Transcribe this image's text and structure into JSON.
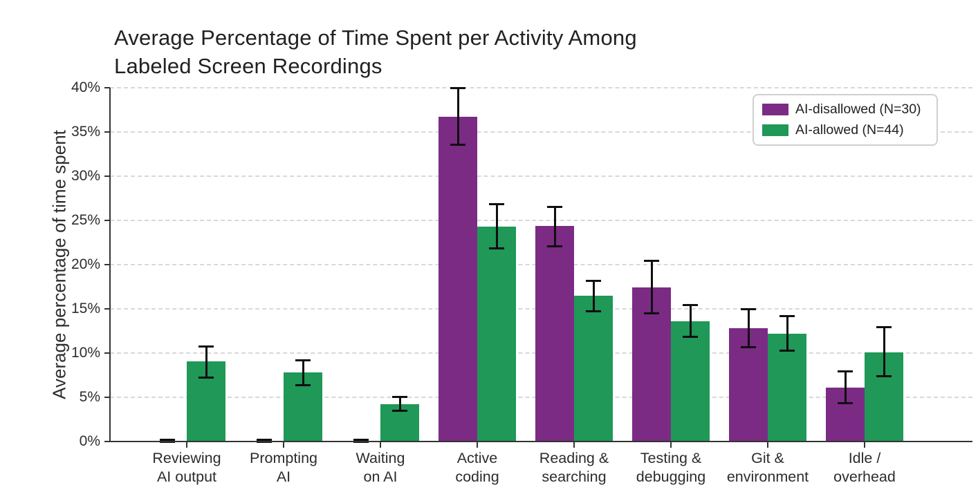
{
  "title": {
    "line1": "Average Percentage of Time Spent per Activity Among",
    "line2": "Labeled Screen Recordings"
  },
  "chart_data": {
    "type": "bar",
    "title": "Average Percentage of Time Spent per Activity Among Labeled Screen Recordings",
    "xlabel": "",
    "ylabel": "Average percentage of time spent",
    "ylim": [
      0,
      40
    ],
    "ytick_step": 5,
    "ytick_labels": [
      "0%",
      "5%",
      "10%",
      "15%",
      "20%",
      "25%",
      "30%",
      "35%",
      "40%"
    ],
    "grid": "horizontal dashed gridlines on",
    "legend_position": "upper right",
    "categories": [
      [
        "Reviewing",
        "AI output"
      ],
      [
        "Prompting",
        "AI"
      ],
      [
        "Waiting",
        "on AI"
      ],
      [
        "Active",
        "coding"
      ],
      [
        "Reading &",
        "searching"
      ],
      [
        "Testing &",
        "debugging"
      ],
      [
        "Git &",
        "environment"
      ],
      [
        "Idle /",
        "overhead"
      ]
    ],
    "series": [
      {
        "name": "AI-disallowed (N=30)",
        "color": "#7b2b84",
        "values": [
          0.1,
          0.1,
          0.1,
          36.7,
          24.4,
          17.4,
          12.8,
          6.1
        ],
        "err_low": [
          0.0,
          0.0,
          0.0,
          33.6,
          22.1,
          14.5,
          10.7,
          4.4
        ],
        "err_high": [
          0.2,
          0.2,
          0.2,
          40.0,
          26.6,
          20.5,
          15.0,
          8.0
        ]
      },
      {
        "name": "AI-allowed (N=44)",
        "color": "#1f9858",
        "values": [
          9.1,
          7.8,
          4.2,
          24.3,
          16.5,
          13.6,
          12.2,
          10.1
        ],
        "err_low": [
          7.3,
          6.4,
          3.5,
          21.9,
          14.8,
          11.9,
          10.3,
          7.4
        ],
        "err_high": [
          10.8,
          9.2,
          5.1,
          26.9,
          18.2,
          15.5,
          14.2,
          13.0
        ]
      }
    ],
    "error_bar_color": "#0f0f0f",
    "axis_color": "#333333",
    "gridline_color": "#d8d8d8"
  }
}
